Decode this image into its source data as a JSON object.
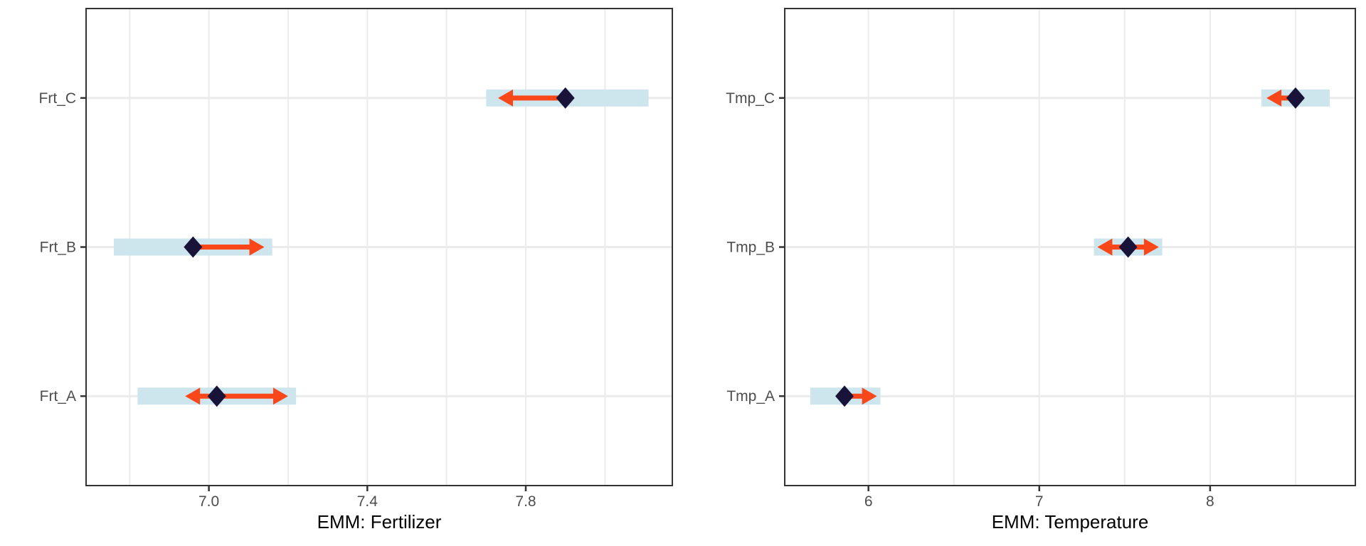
{
  "figure": {
    "background": "#ffffff",
    "kind": "emmeans comparison plot, two panels"
  },
  "chart_data": {
    "type": "dot-interval",
    "description": "Estimated marginal means (diamonds) with confidence interval bars (blue) and pairwise comparison arrows (red)",
    "colors": {
      "ci_bar": "#cde5ec",
      "arrow": "#f9471a",
      "estimate": "#191339",
      "gridline": "#ebebeb",
      "panel_border": "#333333",
      "axis_text": "#4d4d4d",
      "title_text": "#000000"
    },
    "panels": [
      {
        "xlabel": "EMM: Fertilizer",
        "xlim": [
          6.69,
          8.17
        ],
        "x_ticks": [
          {
            "value": 7.0,
            "label": "7.0"
          },
          {
            "value": 7.4,
            "label": "7.4"
          },
          {
            "value": 7.8,
            "label": "7.8"
          }
        ],
        "x_minor_ticks": [
          6.8,
          7.2,
          7.6,
          8.0
        ],
        "categories": [
          {
            "label": "Frt_A",
            "mean": 7.02,
            "ci_low": 6.82,
            "ci_high": 7.22,
            "arrow_left": 6.94,
            "arrow_right": 7.2
          },
          {
            "label": "Frt_B",
            "mean": 6.96,
            "ci_low": 6.76,
            "ci_high": 7.16,
            "arrow_left": null,
            "arrow_right": 7.14
          },
          {
            "label": "Frt_C",
            "mean": 7.9,
            "ci_low": 7.7,
            "ci_high": 8.11,
            "arrow_left": 7.73,
            "arrow_right": null
          }
        ]
      },
      {
        "xlabel": "EMM: Temperature",
        "xlim": [
          5.51,
          8.85
        ],
        "x_ticks": [
          {
            "value": 6,
            "label": "6"
          },
          {
            "value": 7,
            "label": "7"
          },
          {
            "value": 8,
            "label": "8"
          }
        ],
        "x_minor_ticks": [
          6.5,
          7.5,
          8.5
        ],
        "categories": [
          {
            "label": "Tmp_A",
            "mean": 5.86,
            "ci_low": 5.66,
            "ci_high": 6.07,
            "arrow_left": null,
            "arrow_right": 6.05
          },
          {
            "label": "Tmp_B",
            "mean": 7.52,
            "ci_low": 7.32,
            "ci_high": 7.72,
            "arrow_left": 7.34,
            "arrow_right": 7.7
          },
          {
            "label": "Tmp_C",
            "mean": 8.5,
            "ci_low": 8.3,
            "ci_high": 8.7,
            "arrow_left": 8.33,
            "arrow_right": null
          }
        ]
      }
    ]
  }
}
